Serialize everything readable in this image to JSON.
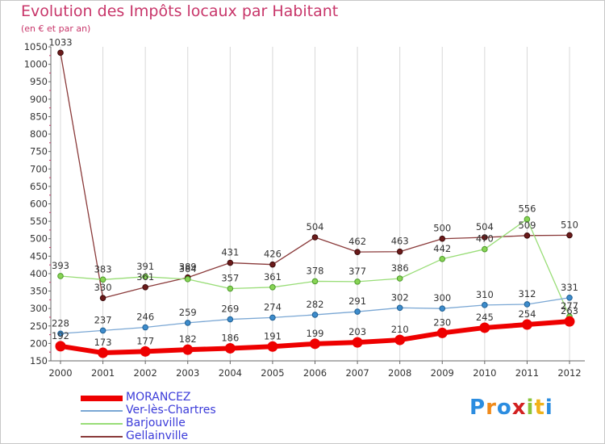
{
  "title": "Evolution des Impôts locaux par Habitant",
  "subtitle": "(en € et par an)",
  "logo_text": [
    "P",
    "r",
    "o",
    "x",
    "i",
    "t",
    "i"
  ],
  "colors": {
    "title": "#c8366a",
    "grid": "#d8d8d8",
    "axis_text": "#333333",
    "legend_text": "#3b3bd9"
  },
  "chart_data": {
    "type": "line",
    "x": [
      2000,
      2001,
      2002,
      2003,
      2004,
      2005,
      2006,
      2007,
      2008,
      2009,
      2010,
      2011,
      2012
    ],
    "ylim": [
      150,
      1050
    ],
    "yticks": [
      150,
      200,
      250,
      300,
      350,
      400,
      450,
      500,
      550,
      600,
      650,
      700,
      750,
      800,
      850,
      900,
      950,
      1000,
      1050
    ],
    "grid": "vertical",
    "legend_position": "bottom-left",
    "series": [
      {
        "name": "MORANCEZ",
        "color": "#ee0000",
        "line_width": 6,
        "marker_fill": "#ee0000",
        "marker_stroke": "#ee0000",
        "values": [
          192,
          173,
          177,
          182,
          186,
          191,
          199,
          203,
          210,
          230,
          245,
          254,
          263
        ]
      },
      {
        "name": "Ver-lès-Chartres",
        "color": "#7aa7d4",
        "line_width": 1.3,
        "marker_fill": "#3d8ccc",
        "marker_stroke": "#1f5f93",
        "values": [
          228,
          237,
          246,
          259,
          269,
          274,
          282,
          291,
          302,
          300,
          310,
          312,
          331
        ]
      },
      {
        "name": "Barjouville",
        "color": "#99dd77",
        "line_width": 1.3,
        "marker_fill": "#88d455",
        "marker_stroke": "#4c9a2a",
        "values": [
          393,
          383,
          391,
          384,
          357,
          361,
          378,
          377,
          386,
          442,
          470,
          556,
          277
        ]
      },
      {
        "name": "Gellainville",
        "color": "#8a3a3a",
        "line_width": 1.3,
        "marker_fill": "#6b1a1a",
        "marker_stroke": "#3a0a0a",
        "values": [
          1033,
          330,
          361,
          389,
          431,
          426,
          504,
          462,
          463,
          500,
          504,
          509,
          510
        ]
      }
    ],
    "data_labels": {
      "MORANCEZ": [
        "192",
        "173",
        "177",
        "182",
        "186",
        "191",
        "199",
        "203",
        "210",
        "230",
        "245",
        "254",
        "263"
      ],
      "Ver-lès-Chartres": [
        "228",
        "237",
        "246",
        "259",
        "269",
        "274",
        "282",
        "291",
        "302",
        "300",
        "310",
        "312",
        "331"
      ],
      "Barjouville": [
        "393",
        "383",
        "391",
        "384",
        "357",
        "361",
        "378",
        "377",
        "386",
        "442",
        "470",
        "556",
        "277"
      ],
      "Gellainville": [
        "1033",
        "330",
        "361",
        "389",
        "431",
        "426",
        "504",
        "462",
        "463",
        "500",
        "504",
        "509",
        "510"
      ]
    }
  }
}
